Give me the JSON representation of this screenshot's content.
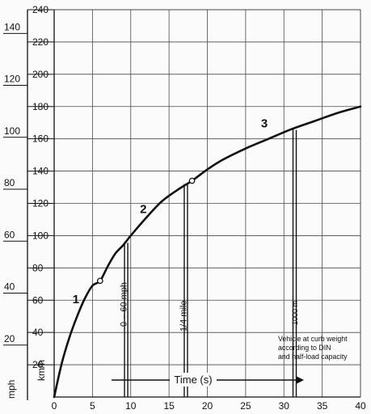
{
  "chart_data": {
    "type": "line",
    "x": [
      0,
      1,
      2,
      3,
      4,
      5,
      6,
      7,
      8,
      9,
      10,
      12,
      14,
      16,
      18,
      20,
      22,
      25,
      28,
      31,
      34,
      37,
      40
    ],
    "series": [
      {
        "values": [
          0,
          21,
          37,
          50,
          61,
          69,
          72,
          81,
          89,
          94,
          100,
          111,
          121,
          128,
          134,
          141,
          147,
          154,
          160,
          166,
          171,
          176,
          180
        ]
      }
    ],
    "segment_labels": [
      {
        "text": "1",
        "x": 2.4,
        "y": 58
      },
      {
        "text": "2",
        "x": 11.2,
        "y": 114
      },
      {
        "text": "3",
        "x": 27.0,
        "y": 167
      }
    ],
    "markers": [
      {
        "x": 6.0,
        "y": 72
      },
      {
        "x": 18.0,
        "y": 134
      }
    ],
    "reference_lines": [
      {
        "x": 9.4,
        "y": 96,
        "label": "0 – 60 mph"
      },
      {
        "x": 17.2,
        "y": 132,
        "label": "1/4 mile"
      },
      {
        "x": 31.4,
        "y": 166,
        "label": "1000 m"
      }
    ],
    "xticks": [
      0,
      5,
      10,
      15,
      20,
      25,
      30,
      35,
      40
    ],
    "xlim": [
      0,
      40
    ],
    "left_axis": {
      "label": "mph",
      "ticks": [
        20,
        40,
        60,
        80,
        100,
        120,
        140
      ],
      "range": [
        0,
        149.1
      ]
    },
    "right_axis": {
      "label": "km/h",
      "ticks": [
        20,
        40,
        60,
        80,
        100,
        120,
        140,
        160,
        180,
        200,
        220,
        240
      ],
      "range": [
        0,
        240
      ]
    },
    "xlabel": "Time (s)",
    "note": [
      "Vehicle at curb weight",
      "according to DIN",
      "and half-load capacity"
    ],
    "grid": true
  }
}
